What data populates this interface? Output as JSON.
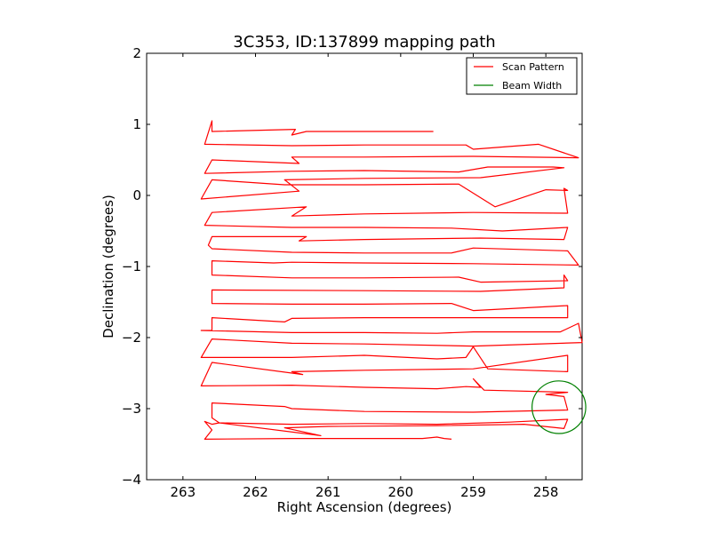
{
  "chart_data": {
    "type": "line",
    "title": "3C353, ID:137899 mapping path",
    "xlabel": "Right Ascension (degrees)",
    "ylabel": "Declination (degrees)",
    "xlim": [
      263.5,
      257.5
    ],
    "ylim": [
      -4,
      2
    ],
    "xticks": [
      263,
      262,
      261,
      260,
      259,
      258
    ],
    "yticks": [
      2,
      1,
      0,
      -1,
      -2,
      -3,
      -4
    ],
    "grid": false,
    "legend": {
      "placement": "top-right",
      "entries": [
        "Scan Pattern",
        "Beam Width"
      ]
    },
    "colors": {
      "scan": "#ff0000",
      "beam": "#008000",
      "frame": "#000000"
    },
    "series": [
      {
        "name": "Scan Pattern",
        "points": [
          [
            259.55,
            0.9
          ],
          [
            261.3,
            0.9
          ],
          [
            261.5,
            0.85
          ],
          [
            261.45,
            0.93
          ],
          [
            262.6,
            0.9
          ],
          [
            262.6,
            1.05
          ],
          [
            262.7,
            0.72
          ],
          [
            261.5,
            0.7
          ],
          [
            260.5,
            0.71
          ],
          [
            259.1,
            0.71
          ],
          [
            259.0,
            0.65
          ],
          [
            258.1,
            0.72
          ],
          [
            257.55,
            0.53
          ],
          [
            259.0,
            0.55
          ],
          [
            260.5,
            0.54
          ],
          [
            261.5,
            0.54
          ],
          [
            261.4,
            0.45
          ],
          [
            262.6,
            0.5
          ],
          [
            262.7,
            0.31
          ],
          [
            261.5,
            0.34
          ],
          [
            260.5,
            0.35
          ],
          [
            259.2,
            0.33
          ],
          [
            258.8,
            0.4
          ],
          [
            257.9,
            0.4
          ],
          [
            257.75,
            0.39
          ],
          [
            258.9,
            0.25
          ],
          [
            260.5,
            0.24
          ],
          [
            261.6,
            0.22
          ],
          [
            261.4,
            0.06
          ],
          [
            262.75,
            -0.05
          ],
          [
            262.6,
            0.22
          ],
          [
            261.6,
            0.15
          ],
          [
            260.5,
            0.15
          ],
          [
            259.2,
            0.16
          ],
          [
            258.7,
            -0.16
          ],
          [
            258.0,
            0.08
          ],
          [
            257.7,
            0.07
          ],
          [
            257.75,
            0.1
          ],
          [
            257.7,
            -0.25
          ],
          [
            259.0,
            -0.24
          ],
          [
            260.5,
            -0.26
          ],
          [
            261.5,
            -0.29
          ],
          [
            261.3,
            -0.16
          ],
          [
            262.6,
            -0.24
          ],
          [
            262.7,
            -0.42
          ],
          [
            261.5,
            -0.45
          ],
          [
            260.5,
            -0.45
          ],
          [
            259.3,
            -0.46
          ],
          [
            258.6,
            -0.5
          ],
          [
            257.7,
            -0.45
          ],
          [
            257.75,
            -0.62
          ],
          [
            258.9,
            -0.6
          ],
          [
            260.5,
            -0.62
          ],
          [
            261.4,
            -0.64
          ],
          [
            261.3,
            -0.58
          ],
          [
            262.6,
            -0.58
          ],
          [
            262.65,
            -0.7
          ],
          [
            262.6,
            -0.75
          ],
          [
            261.5,
            -0.8
          ],
          [
            260.5,
            -0.81
          ],
          [
            259.3,
            -0.81
          ],
          [
            259.0,
            -0.74
          ],
          [
            257.7,
            -0.78
          ],
          [
            257.55,
            -0.98
          ],
          [
            259.0,
            -0.96
          ],
          [
            260.5,
            -0.95
          ],
          [
            261.5,
            -0.94
          ],
          [
            261.75,
            -0.95
          ],
          [
            262.6,
            -0.92
          ],
          [
            262.6,
            -1.05
          ],
          [
            262.6,
            -1.12
          ],
          [
            261.5,
            -1.16
          ],
          [
            260.5,
            -1.16
          ],
          [
            259.2,
            -1.15
          ],
          [
            258.9,
            -1.22
          ],
          [
            257.7,
            -1.2
          ],
          [
            257.75,
            -1.12
          ],
          [
            257.75,
            -1.3
          ],
          [
            258.9,
            -1.35
          ],
          [
            260.5,
            -1.34
          ],
          [
            262.6,
            -1.33
          ],
          [
            262.6,
            -1.52
          ],
          [
            261.5,
            -1.53
          ],
          [
            260.5,
            -1.53
          ],
          [
            259.3,
            -1.52
          ],
          [
            259.0,
            -1.62
          ],
          [
            257.7,
            -1.55
          ],
          [
            257.7,
            -1.72
          ],
          [
            259.0,
            -1.72
          ],
          [
            260.5,
            -1.72
          ],
          [
            261.5,
            -1.73
          ],
          [
            261.6,
            -1.78
          ],
          [
            262.6,
            -1.72
          ],
          [
            262.6,
            -1.9
          ],
          [
            262.75,
            -1.9
          ],
          [
            261.5,
            -1.93
          ],
          [
            260.5,
            -1.93
          ],
          [
            259.5,
            -1.94
          ],
          [
            259.0,
            -1.92
          ],
          [
            257.8,
            -1.92
          ],
          [
            257.55,
            -1.8
          ],
          [
            257.5,
            -2.07
          ],
          [
            259.0,
            -2.12
          ],
          [
            260.5,
            -2.09
          ],
          [
            261.5,
            -2.08
          ],
          [
            262.6,
            -2.02
          ],
          [
            262.75,
            -2.28
          ],
          [
            261.5,
            -2.28
          ],
          [
            260.5,
            -2.25
          ],
          [
            259.5,
            -2.3
          ],
          [
            259.1,
            -2.28
          ],
          [
            259.0,
            -2.13
          ],
          [
            258.8,
            -2.44
          ],
          [
            257.7,
            -2.48
          ],
          [
            257.7,
            -2.25
          ],
          [
            259.0,
            -2.44
          ],
          [
            260.5,
            -2.46
          ],
          [
            261.5,
            -2.48
          ],
          [
            261.35,
            -2.52
          ],
          [
            262.6,
            -2.35
          ],
          [
            262.75,
            -2.68
          ],
          [
            261.5,
            -2.67
          ],
          [
            260.5,
            -2.7
          ],
          [
            259.5,
            -2.72
          ],
          [
            259.1,
            -2.69
          ],
          [
            258.9,
            -2.7
          ],
          [
            259.0,
            -2.58
          ],
          [
            258.85,
            -2.74
          ],
          [
            257.7,
            -2.77
          ],
          [
            258.0,
            -2.8
          ],
          [
            257.75,
            -2.83
          ],
          [
            257.7,
            -3.02
          ],
          [
            259.0,
            -3.05
          ],
          [
            260.5,
            -3.04
          ],
          [
            261.5,
            -3.0
          ],
          [
            261.6,
            -2.97
          ],
          [
            262.6,
            -2.92
          ],
          [
            262.6,
            -3.13
          ],
          [
            262.5,
            -3.2
          ],
          [
            261.5,
            -3.22
          ],
          [
            260.5,
            -3.21
          ],
          [
            259.5,
            -3.22
          ],
          [
            258.5,
            -3.19
          ],
          [
            257.7,
            -3.15
          ],
          [
            257.75,
            -3.28
          ],
          [
            258.3,
            -3.22
          ],
          [
            259.5,
            -3.24
          ],
          [
            261.0,
            -3.25
          ],
          [
            261.6,
            -3.27
          ],
          [
            261.1,
            -3.38
          ],
          [
            262.5,
            -3.2
          ],
          [
            262.6,
            -3.22
          ],
          [
            262.7,
            -3.18
          ],
          [
            262.6,
            -3.3
          ],
          [
            262.7,
            -3.43
          ],
          [
            261.5,
            -3.42
          ],
          [
            260.5,
            -3.42
          ],
          [
            259.7,
            -3.42
          ],
          [
            259.5,
            -3.4
          ],
          [
            259.4,
            -3.42
          ],
          [
            259.3,
            -3.43
          ]
        ]
      },
      {
        "name": "Beam Width",
        "center": [
          257.82,
          -2.98
        ],
        "radius_deg": 0.37
      }
    ]
  }
}
